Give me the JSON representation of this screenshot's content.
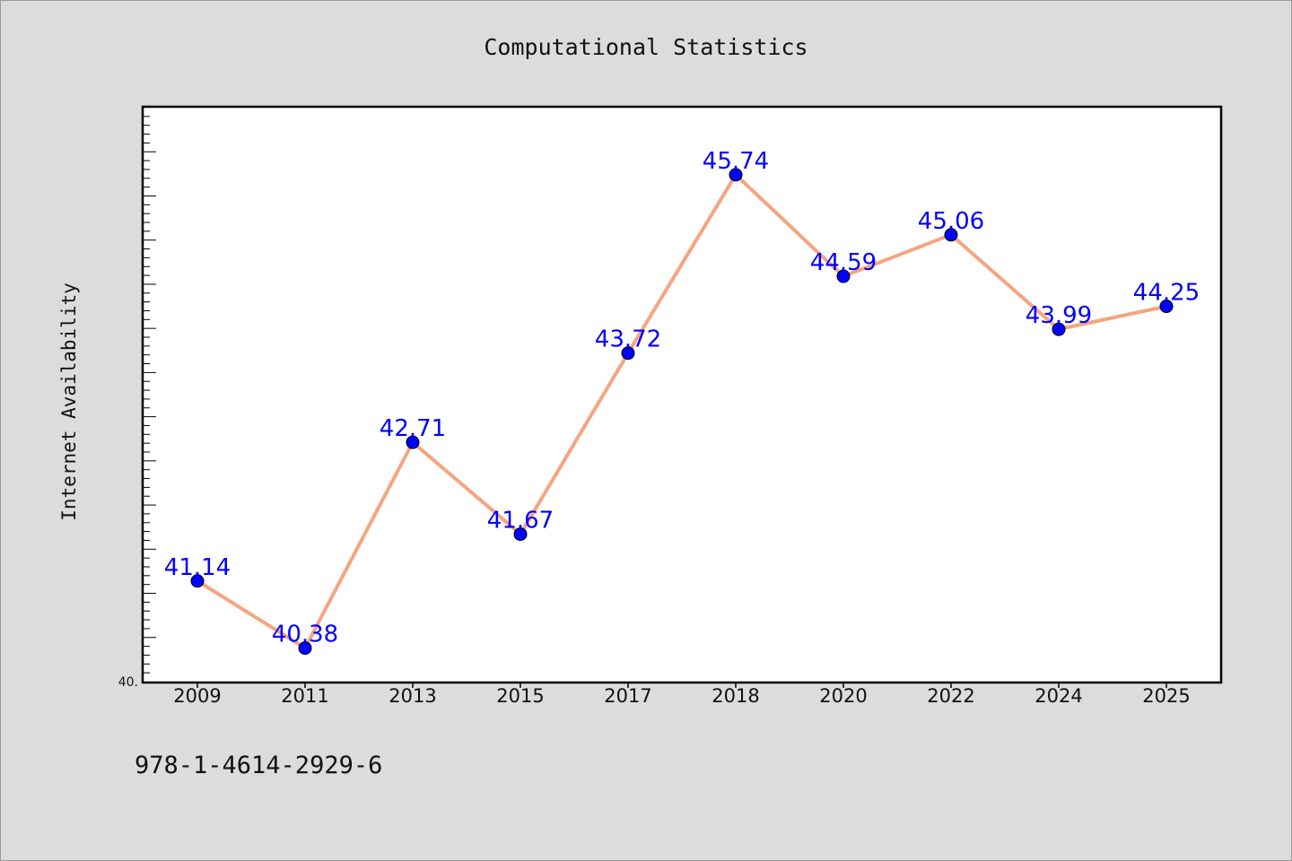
{
  "chart_data": {
    "type": "line",
    "title": "Computational Statistics",
    "xlabel": "",
    "ylabel": "Internet Availability",
    "categories": [
      "2009",
      "2011",
      "2013",
      "2015",
      "2017",
      "2018",
      "2020",
      "2022",
      "2024",
      "2025"
    ],
    "series": [
      {
        "values": [
          41.14,
          40.38,
          42.71,
          41.67,
          43.72,
          45.74,
          44.59,
          45.06,
          43.99,
          44.25
        ],
        "value_labels": [
          "41.14",
          "40.38",
          "42.71",
          "41.67",
          "43.72",
          "45.74",
          "44.59",
          "45.06",
          "43.99",
          "44.25"
        ],
        "line_color": "#f4a582",
        "marker_color": "#0000ff",
        "label_color": "#0000ff"
      }
    ],
    "ylim": [
      40.0,
      46.5
    ],
    "ytick_label": "40.",
    "grid": false,
    "legend": "none"
  },
  "footer": {
    "text": "978-1-4614-2929-6"
  },
  "colors": {
    "background": "#dcdcdc",
    "plot_background": "#ffffff",
    "axis": "#000000"
  }
}
